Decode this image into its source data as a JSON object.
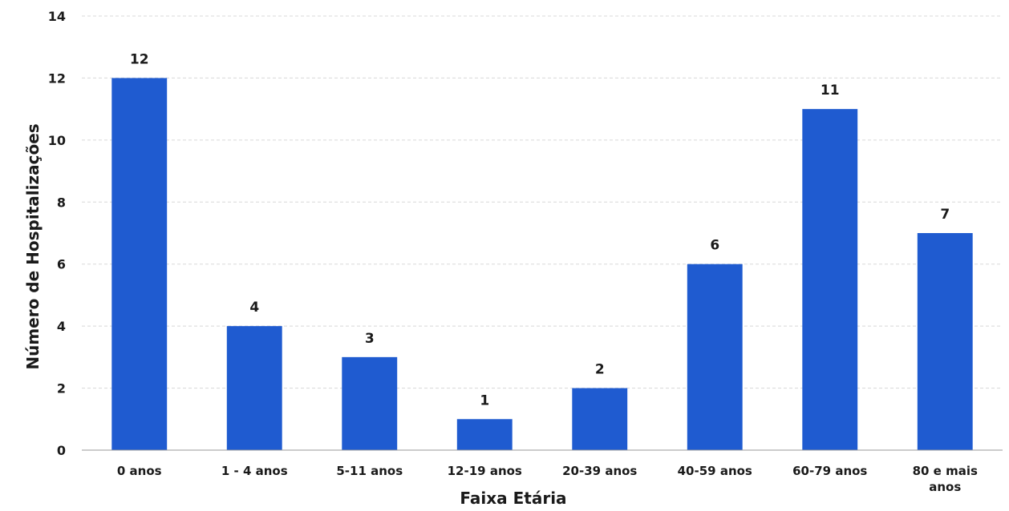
{
  "chart_data": {
    "type": "bar",
    "title": "",
    "xlabel": "Faixa Etária",
    "ylabel": "Número de Hospitalizações",
    "categories": [
      "0 anos",
      "1 - 4 anos",
      "5-11 anos",
      "12-19 anos",
      "20-39 anos",
      "40-59 anos",
      "60-79 anos",
      "80 e mais anos"
    ],
    "values": [
      12,
      4,
      3,
      1,
      2,
      6,
      11,
      7
    ],
    "data_labels": [
      "12",
      "4",
      "3",
      "1",
      "2",
      "6",
      "11",
      "7"
    ],
    "ylim": [
      0,
      14
    ],
    "yticks": [
      "0",
      "2",
      "4",
      "6",
      "8",
      "10",
      "12",
      "14"
    ],
    "grid": true,
    "legend": "none",
    "bar_color": "#1f5bd0",
    "grid_color": "#d8d8d8"
  }
}
